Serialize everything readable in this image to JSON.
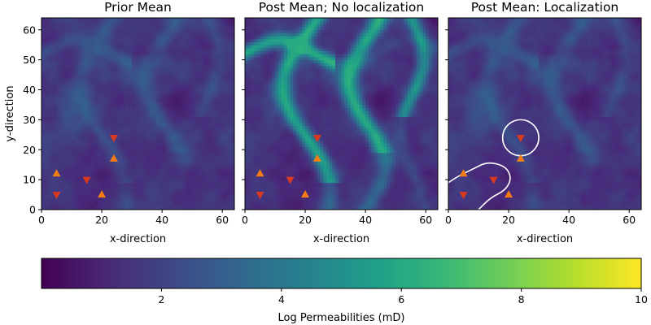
{
  "colors": {
    "viridis": [
      "#440154",
      "#482878",
      "#3e4989",
      "#31688e",
      "#26828e",
      "#1f9e89",
      "#35b779",
      "#6ece58",
      "#b5de2b",
      "#fde725"
    ],
    "producer_marker": "#f57c14",
    "injector_marker": "#d83a20",
    "localization_contour": "#ffffff"
  },
  "chart_data": [
    {
      "type": "heatmap",
      "title": "Prior Mean",
      "xlabel": "x-direction",
      "ylabel": "y-direction",
      "xlim": [
        0,
        64
      ],
      "ylim": [
        0,
        64
      ],
      "xticks": [
        "0",
        "20",
        "40",
        "60"
      ],
      "yticks": [
        "0",
        "10",
        "20",
        "30",
        "40",
        "50",
        "60"
      ],
      "grid": false,
      "field_level": 0.28,
      "channel_strength": 0.1,
      "wells_up": [
        {
          "x": 5,
          "y": 12
        },
        {
          "x": 24,
          "y": 17
        },
        {
          "x": 20,
          "y": 5
        }
      ],
      "wells_down": [
        {
          "x": 5,
          "y": 5
        },
        {
          "x": 15,
          "y": 10
        },
        {
          "x": 24,
          "y": 24
        }
      ]
    },
    {
      "type": "heatmap",
      "title": "Post Mean; No localization",
      "xlabel": "x-direction",
      "ylabel": "",
      "xlim": [
        0,
        64
      ],
      "ylim": [
        0,
        64
      ],
      "xticks": [
        "0",
        "20",
        "40",
        "60"
      ],
      "yticks": [],
      "grid": false,
      "field_level": 0.26,
      "channel_strength": 0.45,
      "wells_up": [
        {
          "x": 5,
          "y": 12
        },
        {
          "x": 24,
          "y": 17
        },
        {
          "x": 20,
          "y": 5
        }
      ],
      "wells_down": [
        {
          "x": 5,
          "y": 5
        },
        {
          "x": 15,
          "y": 10
        },
        {
          "x": 24,
          "y": 24
        }
      ]
    },
    {
      "type": "heatmap",
      "title": "Post Mean: Localization",
      "xlabel": "x-direction",
      "ylabel": "",
      "xlim": [
        0,
        64
      ],
      "ylim": [
        0,
        64
      ],
      "xticks": [
        "0",
        "20",
        "40",
        "60"
      ],
      "yticks": [],
      "grid": false,
      "field_level": 0.28,
      "channel_strength": 0.1,
      "wells_up": [
        {
          "x": 5,
          "y": 12
        },
        {
          "x": 24,
          "y": 17
        },
        {
          "x": 20,
          "y": 5
        }
      ],
      "wells_down": [
        {
          "x": 5,
          "y": 5
        },
        {
          "x": 15,
          "y": 10
        },
        {
          "x": 24,
          "y": 24
        }
      ],
      "localization_regions": [
        {
          "cx": 24,
          "cy": 24,
          "r": 6
        },
        {
          "points": [
            [
              0,
              9
            ],
            [
              3,
              11
            ],
            [
              8,
              13.5
            ],
            [
              13,
              16
            ],
            [
              19,
              14.5
            ],
            [
              21,
              10.5
            ],
            [
              19,
              6.5
            ],
            [
              14,
              4
            ],
            [
              10,
              0
            ]
          ]
        },
        {
          "points": [
            [
              0,
              1
            ],
            [
              -1,
              0
            ]
          ]
        }
      ]
    }
  ],
  "colorbar": {
    "label": "Log Permeabilities (mD)",
    "range": [
      0,
      10
    ],
    "ticks": [
      "2",
      "4",
      "6",
      "8",
      "10"
    ]
  }
}
